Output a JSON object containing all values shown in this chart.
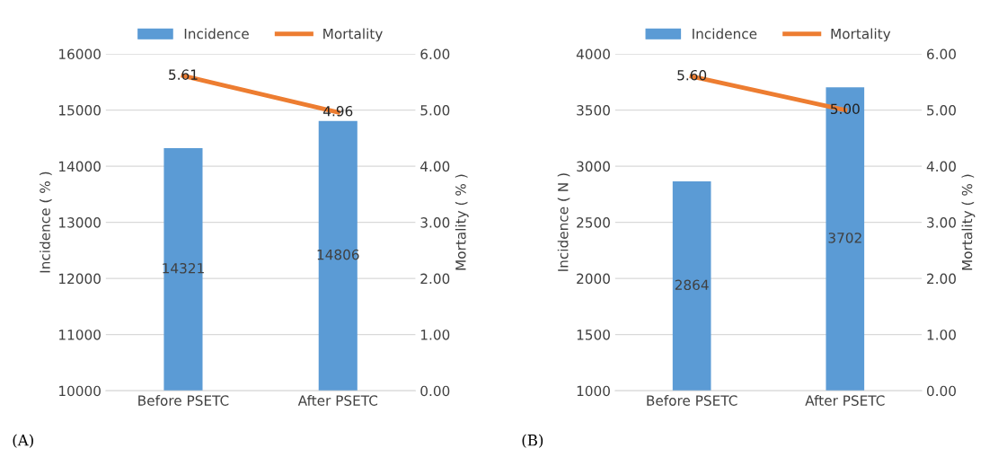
{
  "chart_data": [
    {
      "type": "bar",
      "categories": [
        "Before PSETC",
        "After PSETC"
      ],
      "ylabel": "Incidence ( % )",
      "y2label": "Mortality ( % )",
      "ylim": [
        10000,
        16000
      ],
      "yticks": [
        10000,
        11000,
        12000,
        13000,
        14000,
        15000,
        16000
      ],
      "y2lim": [
        0,
        6
      ],
      "y2ticks": [
        {
          "value": 0,
          "label": "0.00"
        },
        {
          "value": 1,
          "label": "1.00"
        },
        {
          "value": 2,
          "label": "2.00"
        },
        {
          "value": 3,
          "label": "3.00"
        },
        {
          "value": 4,
          "label": "4.00"
        },
        {
          "value": 5,
          "label": "5.00"
        },
        {
          "value": 6,
          "label": "6.00"
        }
      ],
      "grid": "y",
      "legend": "top",
      "data_labels": true,
      "annotations": [
        "(A)"
      ],
      "series": [
        {
          "name": "Incidence",
          "color": "#5b9bd5",
          "values": [
            14321,
            14806
          ]
        },
        {
          "name": "Mortality",
          "type": "line",
          "axis": "y2",
          "color": "#ed7d31",
          "values": [
            5.61,
            4.96
          ],
          "value_labels": [
            "5.61",
            "4.96"
          ]
        }
      ]
    },
    {
      "type": "bar",
      "categories": [
        "Before PSETC",
        "After PSETC"
      ],
      "ylabel": "Incidence ( N )",
      "y2label": "Mortality ( % )",
      "ylim": [
        1000,
        4000
      ],
      "yticks": [
        1000,
        1500,
        2000,
        2500,
        3000,
        3500,
        4000
      ],
      "y2lim": [
        0,
        6
      ],
      "y2ticks": [
        {
          "value": 0,
          "label": "0.00"
        },
        {
          "value": 1,
          "label": "1.00"
        },
        {
          "value": 2,
          "label": "2.00"
        },
        {
          "value": 3,
          "label": "3.00"
        },
        {
          "value": 4,
          "label": "4.00"
        },
        {
          "value": 5,
          "label": "5.00"
        },
        {
          "value": 6,
          "label": "6.00"
        }
      ],
      "grid": "y",
      "legend": "top",
      "data_labels": true,
      "annotations": [
        "(B)"
      ],
      "series": [
        {
          "name": "Incidence",
          "color": "#5b9bd5",
          "values": [
            2864,
            3702
          ]
        },
        {
          "name": "Mortality",
          "type": "line",
          "axis": "y2",
          "color": "#ed7d31",
          "values": [
            5.6,
            5.0
          ],
          "value_labels": [
            "5.60",
            "5.00"
          ]
        }
      ]
    }
  ]
}
